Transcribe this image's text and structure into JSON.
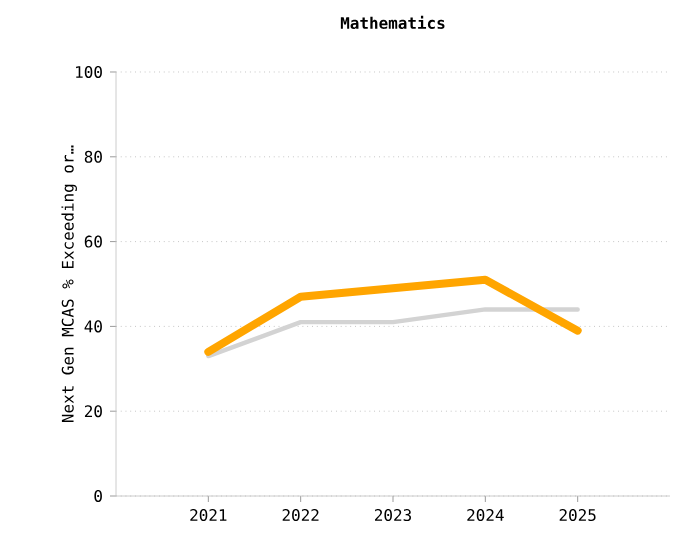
{
  "chart_data": {
    "type": "line",
    "title": "Mathematics",
    "ylabel": "Next Gen MCAS % Exceeding or…",
    "categories": [
      "2021",
      "2022",
      "2023",
      "2024",
      "2025"
    ],
    "series": [
      {
        "color": "#d3d3d3",
        "values": [
          33,
          41,
          41,
          44,
          44
        ]
      },
      {
        "color": "#ffa500",
        "values": [
          34,
          47,
          49,
          51,
          39
        ]
      }
    ],
    "ylim": [
      0,
      100
    ],
    "yticks": [
      0,
      20,
      40,
      60,
      80,
      100
    ],
    "grid": "y",
    "marker": "none",
    "line_style": "solid"
  }
}
